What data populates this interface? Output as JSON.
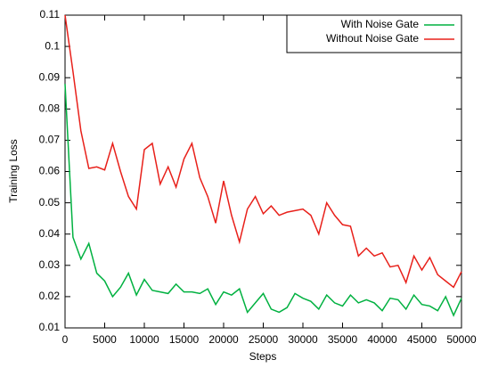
{
  "chart_data": {
    "type": "line",
    "xlabel": "Steps",
    "ylabel": "Training Loss",
    "x": [
      0,
      1000,
      2000,
      3000,
      4000,
      5000,
      6000,
      7000,
      8000,
      9000,
      10000,
      11000,
      12000,
      13000,
      14000,
      15000,
      16000,
      17000,
      18000,
      19000,
      20000,
      21000,
      22000,
      23000,
      24000,
      25000,
      26000,
      27000,
      28000,
      29000,
      30000,
      31000,
      32000,
      33000,
      34000,
      35000,
      36000,
      37000,
      38000,
      39000,
      40000,
      41000,
      42000,
      43000,
      44000,
      45000,
      46000,
      47000,
      48000,
      49000,
      50000
    ],
    "series": [
      {
        "name": "With Noise Gate",
        "color": "#00b140",
        "values": [
          0.088,
          0.039,
          0.032,
          0.037,
          0.0275,
          0.025,
          0.02,
          0.023,
          0.0275,
          0.0205,
          0.0255,
          0.022,
          0.0215,
          0.021,
          0.024,
          0.0215,
          0.0215,
          0.021,
          0.0225,
          0.0175,
          0.0215,
          0.0205,
          0.0225,
          0.015,
          0.018,
          0.021,
          0.016,
          0.015,
          0.0165,
          0.021,
          0.0195,
          0.0185,
          0.016,
          0.0205,
          0.018,
          0.017,
          0.0205,
          0.018,
          0.019,
          0.018,
          0.0155,
          0.0195,
          0.019,
          0.016,
          0.0205,
          0.0175,
          0.017,
          0.0155,
          0.02,
          0.014,
          0.0195
        ]
      },
      {
        "name": "Without Noise Gate",
        "color": "#e8201a",
        "values": [
          0.11,
          0.092,
          0.073,
          0.061,
          0.0615,
          0.0605,
          0.069,
          0.06,
          0.052,
          0.048,
          0.067,
          0.069,
          0.056,
          0.0615,
          0.055,
          0.064,
          0.069,
          0.058,
          0.052,
          0.0435,
          0.057,
          0.046,
          0.0375,
          0.048,
          0.052,
          0.0465,
          0.049,
          0.046,
          0.047,
          0.0475,
          0.048,
          0.046,
          0.04,
          0.05,
          0.046,
          0.043,
          0.0425,
          0.033,
          0.0355,
          0.033,
          0.034,
          0.0295,
          0.03,
          0.0245,
          0.033,
          0.0285,
          0.0325,
          0.027,
          0.025,
          0.023,
          0.028
        ]
      }
    ],
    "xlim": [
      0,
      50000
    ],
    "xticks": [
      0,
      5000,
      10000,
      15000,
      20000,
      25000,
      30000,
      35000,
      40000,
      45000,
      50000
    ],
    "ylim": [
      0.01,
      0.11
    ],
    "yticks": [
      0.01,
      0.02,
      0.03,
      0.04,
      0.05,
      0.06,
      0.07,
      0.08,
      0.09,
      0.1,
      0.11
    ],
    "legend": "top-right"
  }
}
